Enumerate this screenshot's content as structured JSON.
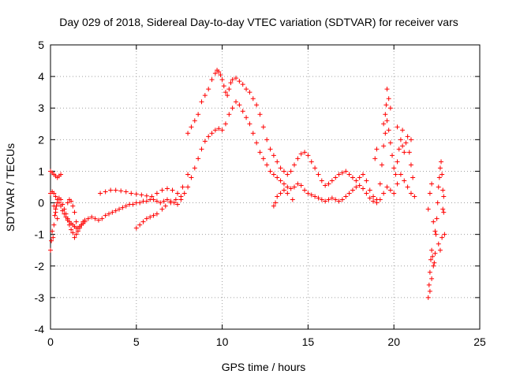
{
  "chart_data": {
    "type": "scatter",
    "title": "Day 029 of 2018, Sidereal Day-to-day VTEC variation (SDTVAR) for receiver vars",
    "xlabel": "GPS time / hours",
    "ylabel": "SDTVAR / TECUs",
    "xlim": [
      0,
      25
    ],
    "ylim": [
      -4,
      5
    ],
    "xticks": [
      0,
      5,
      10,
      15,
      20,
      25
    ],
    "yticks": [
      -4,
      -3,
      -2,
      -1,
      0,
      1,
      2,
      3,
      4,
      5
    ],
    "grid": true,
    "marker": "+",
    "color": "#ff0000",
    "series": [
      {
        "name": "SDTVAR",
        "points": [
          [
            0.0,
            -1.5
          ],
          [
            0.05,
            -1.2
          ],
          [
            0.1,
            -0.9
          ],
          [
            0.15,
            -1.1
          ],
          [
            0.2,
            -0.7
          ],
          [
            0.25,
            -0.4
          ],
          [
            0.3,
            -0.2
          ],
          [
            0.35,
            -0.1
          ],
          [
            0.4,
            0.0
          ],
          [
            0.5,
            0.15
          ],
          [
            0.6,
            0.1
          ],
          [
            0.7,
            -0.05
          ],
          [
            0.8,
            -0.2
          ],
          [
            0.9,
            -0.35
          ],
          [
            1.0,
            -0.5
          ],
          [
            1.1,
            -0.7
          ],
          [
            1.2,
            -0.85
          ],
          [
            1.3,
            -0.95
          ],
          [
            1.4,
            -1.1
          ],
          [
            1.5,
            -1.0
          ],
          [
            1.6,
            -0.9
          ],
          [
            1.7,
            -0.8
          ],
          [
            1.8,
            -0.7
          ],
          [
            1.9,
            -0.6
          ],
          [
            2.0,
            -0.55
          ],
          [
            2.2,
            -0.5
          ],
          [
            2.4,
            -0.45
          ],
          [
            2.6,
            -0.5
          ],
          [
            2.8,
            -0.55
          ],
          [
            3.0,
            -0.5
          ],
          [
            3.2,
            -0.4
          ],
          [
            3.4,
            -0.35
          ],
          [
            3.6,
            -0.3
          ],
          [
            3.8,
            -0.25
          ],
          [
            4.0,
            -0.2
          ],
          [
            4.2,
            -0.15
          ],
          [
            4.4,
            -0.1
          ],
          [
            4.6,
            -0.05
          ],
          [
            4.8,
            -0.05
          ],
          [
            5.0,
            0.0
          ],
          [
            5.2,
            0.0
          ],
          [
            5.4,
            0.05
          ],
          [
            5.6,
            0.05
          ],
          [
            5.8,
            0.1
          ],
          [
            6.0,
            0.1
          ],
          [
            6.2,
            0.05
          ],
          [
            6.4,
            0.0
          ],
          [
            6.6,
            0.05
          ],
          [
            6.8,
            0.1
          ],
          [
            7.0,
            0.05
          ],
          [
            7.2,
            0.0
          ],
          [
            7.4,
            -0.05
          ],
          [
            7.6,
            0.1
          ],
          [
            7.8,
            0.3
          ],
          [
            8.0,
            0.5
          ],
          [
            8.2,
            0.8
          ],
          [
            8.4,
            1.1
          ],
          [
            8.6,
            1.4
          ],
          [
            8.8,
            1.7
          ],
          [
            9.0,
            1.95
          ],
          [
            9.2,
            2.1
          ],
          [
            9.4,
            2.2
          ],
          [
            9.6,
            2.3
          ],
          [
            9.8,
            2.35
          ],
          [
            10.0,
            2.3
          ],
          [
            10.2,
            2.5
          ],
          [
            10.4,
            2.8
          ],
          [
            10.6,
            3.0
          ],
          [
            10.8,
            3.2
          ],
          [
            11.0,
            3.1
          ],
          [
            11.2,
            2.9
          ],
          [
            11.4,
            2.7
          ],
          [
            11.6,
            2.5
          ],
          [
            11.8,
            2.2
          ],
          [
            12.0,
            1.9
          ],
          [
            12.2,
            1.6
          ],
          [
            12.4,
            1.4
          ],
          [
            12.6,
            1.2
          ],
          [
            12.8,
            1.0
          ],
          [
            13.0,
            0.9
          ],
          [
            13.2,
            0.8
          ],
          [
            13.4,
            0.7
          ],
          [
            13.6,
            0.6
          ],
          [
            13.8,
            0.5
          ],
          [
            14.0,
            0.45
          ],
          [
            14.2,
            0.5
          ],
          [
            14.4,
            0.6
          ],
          [
            14.6,
            0.55
          ],
          [
            14.8,
            0.4
          ],
          [
            15.0,
            0.3
          ],
          [
            15.2,
            0.25
          ],
          [
            15.4,
            0.2
          ],
          [
            15.6,
            0.15
          ],
          [
            15.8,
            0.1
          ],
          [
            16.0,
            0.05
          ],
          [
            16.2,
            0.1
          ],
          [
            16.4,
            0.15
          ],
          [
            16.6,
            0.1
          ],
          [
            16.8,
            0.05
          ],
          [
            17.0,
            0.1
          ],
          [
            17.2,
            0.2
          ],
          [
            17.4,
            0.3
          ],
          [
            17.6,
            0.4
          ],
          [
            17.8,
            0.5
          ],
          [
            18.0,
            0.55
          ],
          [
            18.2,
            0.45
          ],
          [
            18.4,
            0.3
          ],
          [
            18.6,
            0.15
          ],
          [
            18.8,
            0.05
          ],
          [
            19.0,
            0.0
          ],
          [
            19.2,
            0.1
          ],
          [
            19.4,
            0.3
          ],
          [
            19.6,
            0.5
          ],
          [
            19.8,
            0.4
          ],
          [
            20.0,
            0.3
          ],
          [
            20.2,
            0.6
          ],
          [
            20.4,
            0.9
          ],
          [
            20.6,
            0.7
          ],
          [
            20.8,
            0.5
          ],
          [
            21.0,
            0.3
          ],
          [
            21.2,
            0.2
          ],
          [
            2.9,
            0.3
          ],
          [
            3.2,
            0.35
          ],
          [
            3.5,
            0.4
          ],
          [
            3.8,
            0.4
          ],
          [
            4.1,
            0.38
          ],
          [
            4.4,
            0.35
          ],
          [
            4.7,
            0.3
          ],
          [
            5.0,
            0.28
          ],
          [
            5.3,
            0.25
          ],
          [
            5.6,
            0.22
          ],
          [
            5.9,
            0.2
          ],
          [
            6.2,
            0.3
          ],
          [
            6.5,
            0.4
          ],
          [
            6.8,
            0.45
          ],
          [
            7.1,
            0.4
          ],
          [
            7.4,
            0.3
          ],
          [
            7.7,
            0.5
          ],
          [
            8.0,
            0.9
          ],
          [
            8.0,
            2.2
          ],
          [
            8.2,
            2.4
          ],
          [
            8.4,
            2.6
          ],
          [
            8.6,
            2.8
          ],
          [
            8.8,
            3.2
          ],
          [
            9.0,
            3.4
          ],
          [
            9.2,
            3.6
          ],
          [
            9.4,
            3.9
          ],
          [
            9.6,
            4.1
          ],
          [
            9.7,
            4.2
          ],
          [
            9.8,
            4.15
          ],
          [
            9.9,
            4.05
          ],
          [
            10.0,
            3.9
          ],
          [
            10.1,
            3.7
          ],
          [
            10.2,
            3.5
          ],
          [
            10.3,
            3.4
          ],
          [
            10.4,
            3.6
          ],
          [
            10.5,
            3.8
          ],
          [
            10.6,
            3.9
          ],
          [
            10.8,
            3.95
          ],
          [
            11.0,
            3.85
          ],
          [
            11.2,
            3.75
          ],
          [
            11.4,
            3.6
          ],
          [
            11.6,
            3.5
          ],
          [
            11.8,
            3.3
          ],
          [
            12.0,
            3.1
          ],
          [
            12.2,
            2.8
          ],
          [
            12.4,
            2.4
          ],
          [
            12.6,
            2.0
          ],
          [
            12.8,
            1.7
          ],
          [
            13.0,
            1.5
          ],
          [
            13.2,
            1.3
          ],
          [
            13.4,
            1.1
          ],
          [
            13.6,
            1.0
          ],
          [
            13.8,
            0.9
          ],
          [
            14.0,
            1.0
          ],
          [
            14.2,
            1.2
          ],
          [
            14.4,
            1.4
          ],
          [
            14.6,
            1.55
          ],
          [
            14.8,
            1.6
          ],
          [
            15.0,
            1.5
          ],
          [
            15.2,
            1.3
          ],
          [
            15.4,
            1.1
          ],
          [
            15.6,
            0.9
          ],
          [
            15.8,
            0.7
          ],
          [
            16.0,
            0.55
          ],
          [
            16.2,
            0.6
          ],
          [
            16.4,
            0.7
          ],
          [
            16.6,
            0.8
          ],
          [
            16.8,
            0.9
          ],
          [
            17.0,
            0.95
          ],
          [
            17.2,
            1.0
          ],
          [
            17.4,
            0.9
          ],
          [
            17.6,
            0.8
          ],
          [
            17.8,
            0.7
          ],
          [
            18.0,
            0.8
          ],
          [
            18.2,
            0.9
          ],
          [
            18.4,
            0.7
          ],
          [
            18.6,
            0.4
          ],
          [
            18.8,
            0.2
          ],
          [
            19.0,
            0.1
          ],
          [
            19.2,
            0.6
          ],
          [
            19.3,
            1.2
          ],
          [
            19.4,
            1.8
          ],
          [
            19.5,
            2.2
          ],
          [
            19.6,
            2.6
          ],
          [
            19.7,
            2.3
          ],
          [
            19.8,
            1.9
          ],
          [
            19.9,
            1.5
          ],
          [
            20.0,
            1.1
          ],
          [
            20.1,
            0.9
          ],
          [
            20.2,
            1.3
          ],
          [
            20.3,
            1.7
          ],
          [
            20.4,
            2.0
          ],
          [
            20.5,
            1.8
          ],
          [
            20.6,
            1.6
          ],
          [
            20.7,
            1.9
          ],
          [
            20.8,
            2.1
          ],
          [
            20.9,
            1.6
          ],
          [
            21.0,
            1.2
          ],
          [
            21.1,
            0.8
          ],
          [
            19.5,
            2.8
          ],
          [
            19.55,
            3.1
          ],
          [
            19.6,
            3.6
          ],
          [
            19.7,
            3.3
          ],
          [
            19.8,
            3.0
          ],
          [
            20.5,
            2.3
          ],
          [
            21.0,
            2.0
          ],
          [
            20.2,
            2.4
          ],
          [
            19.4,
            2.5
          ],
          [
            19.0,
            1.7
          ],
          [
            18.9,
            1.4
          ],
          [
            0.0,
            0.3
          ],
          [
            0.1,
            0.35
          ],
          [
            0.2,
            0.3
          ],
          [
            0.3,
            0.2
          ],
          [
            0.4,
            0.1
          ],
          [
            0.5,
            0.0
          ],
          [
            0.6,
            -0.1
          ],
          [
            0.7,
            -0.25
          ],
          [
            0.8,
            -0.35
          ],
          [
            0.9,
            -0.45
          ],
          [
            1.0,
            -0.55
          ],
          [
            1.1,
            -0.6
          ],
          [
            1.2,
            -0.65
          ],
          [
            1.3,
            -0.7
          ],
          [
            1.4,
            -0.75
          ],
          [
            1.5,
            -0.8
          ],
          [
            1.6,
            -0.8
          ],
          [
            1.7,
            -0.75
          ],
          [
            1.8,
            -0.7
          ],
          [
            1.9,
            -0.65
          ],
          [
            2.0,
            -0.6
          ],
          [
            0.0,
            1.0
          ],
          [
            0.1,
            0.95
          ],
          [
            0.2,
            0.9
          ],
          [
            0.3,
            0.85
          ],
          [
            0.4,
            0.8
          ],
          [
            0.5,
            0.85
          ],
          [
            0.6,
            0.9
          ],
          [
            0.2,
            -0.1
          ],
          [
            0.3,
            -0.3
          ],
          [
            0.4,
            -0.5
          ],
          [
            1.0,
            0.0
          ],
          [
            1.1,
            0.1
          ],
          [
            1.2,
            0.05
          ],
          [
            1.3,
            -0.1
          ],
          [
            1.4,
            -0.3
          ],
          [
            1.5,
            -0.6
          ],
          [
            5.0,
            -0.8
          ],
          [
            5.2,
            -0.7
          ],
          [
            5.4,
            -0.6
          ],
          [
            5.6,
            -0.5
          ],
          [
            5.8,
            -0.45
          ],
          [
            6.0,
            -0.4
          ],
          [
            6.2,
            -0.35
          ],
          [
            6.5,
            -0.2
          ],
          [
            6.7,
            -0.1
          ],
          [
            7.0,
            0.0
          ],
          [
            7.3,
            0.1
          ],
          [
            7.6,
            0.2
          ],
          [
            13.0,
            -0.1
          ],
          [
            13.1,
            0.0
          ],
          [
            13.2,
            0.2
          ],
          [
            13.4,
            0.3
          ],
          [
            13.6,
            0.4
          ],
          [
            13.8,
            0.3
          ],
          [
            14.1,
            0.1
          ],
          [
            22.0,
            -3.0
          ],
          [
            22.05,
            -2.6
          ],
          [
            22.1,
            -2.2
          ],
          [
            22.15,
            -1.8
          ],
          [
            22.2,
            -1.5
          ],
          [
            22.25,
            -1.7
          ],
          [
            22.3,
            -2.0
          ],
          [
            22.35,
            -1.9
          ],
          [
            22.4,
            -1.6
          ],
          [
            22.45,
            -1.0
          ],
          [
            22.5,
            -0.5
          ],
          [
            22.55,
            0.0
          ],
          [
            22.6,
            0.5
          ],
          [
            22.65,
            0.8
          ],
          [
            22.7,
            1.1
          ],
          [
            22.75,
            1.3
          ],
          [
            22.8,
            0.9
          ],
          [
            22.85,
            0.4
          ],
          [
            22.9,
            -0.3
          ],
          [
            22.95,
            -1.0
          ],
          [
            22.0,
            -0.2
          ],
          [
            22.1,
            0.3
          ],
          [
            22.2,
            0.6
          ],
          [
            22.3,
            -0.6
          ],
          [
            22.4,
            -0.9
          ],
          [
            22.6,
            -1.3
          ],
          [
            22.7,
            -1.5
          ],
          [
            22.8,
            -1.1
          ],
          [
            22.85,
            -0.2
          ],
          [
            22.9,
            0.2
          ],
          [
            22.1,
            -2.8
          ],
          [
            22.2,
            -2.4
          ]
        ]
      }
    ]
  }
}
